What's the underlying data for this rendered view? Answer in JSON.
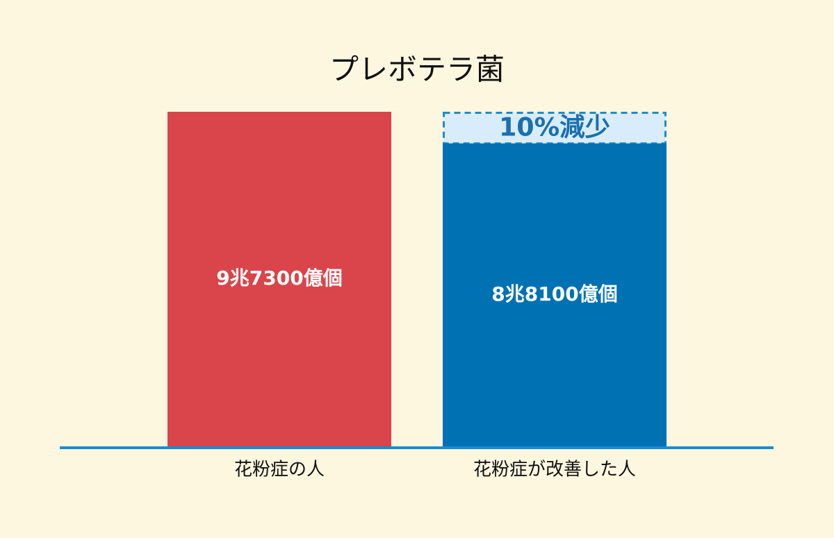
{
  "chart_data": {
    "type": "bar",
    "title": "プレボテラ菌",
    "categories": [
      "花粉症の人",
      "花粉症が改善した人"
    ],
    "values": [
      97300,
      88100
    ],
    "value_labels": [
      "9兆7300億個",
      "8兆8100億個"
    ],
    "colors": [
      "#d9454a",
      "#0071b3"
    ],
    "annotation": "10%減少"
  }
}
